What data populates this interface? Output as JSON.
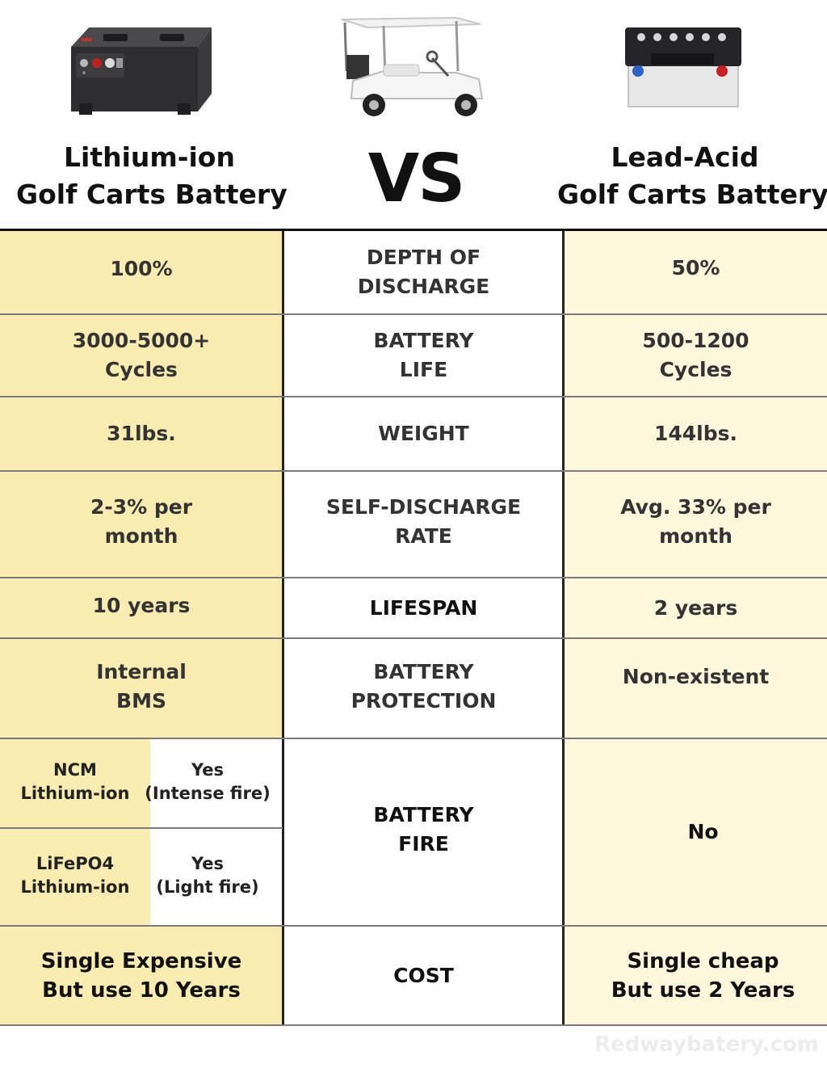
{
  "header": {
    "left_title": [
      "Lithium-ion",
      "Golf Carts Battery"
    ],
    "vs": "VS",
    "right_title": [
      "Lead-Acid",
      "Golf Carts Battery"
    ],
    "images": [
      "lithium-battery",
      "golf-cart",
      "lead-acid-battery"
    ]
  },
  "rows": [
    {
      "left": [
        "100%"
      ],
      "mid": [
        "DEPTH OF",
        "DISCHARGE"
      ],
      "right": [
        "50%"
      ]
    },
    {
      "left": [
        "3000-5000+",
        "Cycles"
      ],
      "mid": [
        "BATTERY",
        "LIFE"
      ],
      "right": [
        "500-1200",
        "Cycles"
      ]
    },
    {
      "left": [
        "31lbs."
      ],
      "mid": [
        "WEIGHT"
      ],
      "right": [
        "144lbs."
      ]
    },
    {
      "left": [
        "2-3% per",
        "month"
      ],
      "mid": [
        "SELF-DISCHARGE",
        "RATE"
      ],
      "right": [
        "Avg. 33% per",
        "month"
      ]
    },
    {
      "left": [
        "10 years"
      ],
      "mid": [
        "LIFESPAN"
      ],
      "right": [
        "2 years"
      ]
    },
    {
      "left": [
        "Internal",
        "BMS"
      ],
      "mid": [
        "BATTERY",
        "PROTECTION"
      ],
      "right": [
        "Non-existent"
      ]
    }
  ],
  "fire": {
    "sub_rows": [
      {
        "type": [
          "NCM",
          "Lithium-ion"
        ],
        "value": [
          "Yes",
          "(Intense fire)"
        ]
      },
      {
        "type": [
          "LiFePO4",
          "Lithium-ion"
        ],
        "value": [
          "Yes",
          "(Light fire)"
        ]
      }
    ],
    "mid": [
      "BATTERY",
      "FIRE"
    ],
    "right": [
      "No"
    ]
  },
  "cost": {
    "left": [
      "Single Expensive",
      "But use 10 Years"
    ],
    "mid": [
      "COST"
    ],
    "right": [
      "Single cheap",
      "But use 2 Years"
    ]
  },
  "watermark": "Redwaybatery.com",
  "colors": {
    "lithium_column": "#f9ecb0",
    "lead_acid_column": "#fdf8dc",
    "border": "#222222"
  }
}
